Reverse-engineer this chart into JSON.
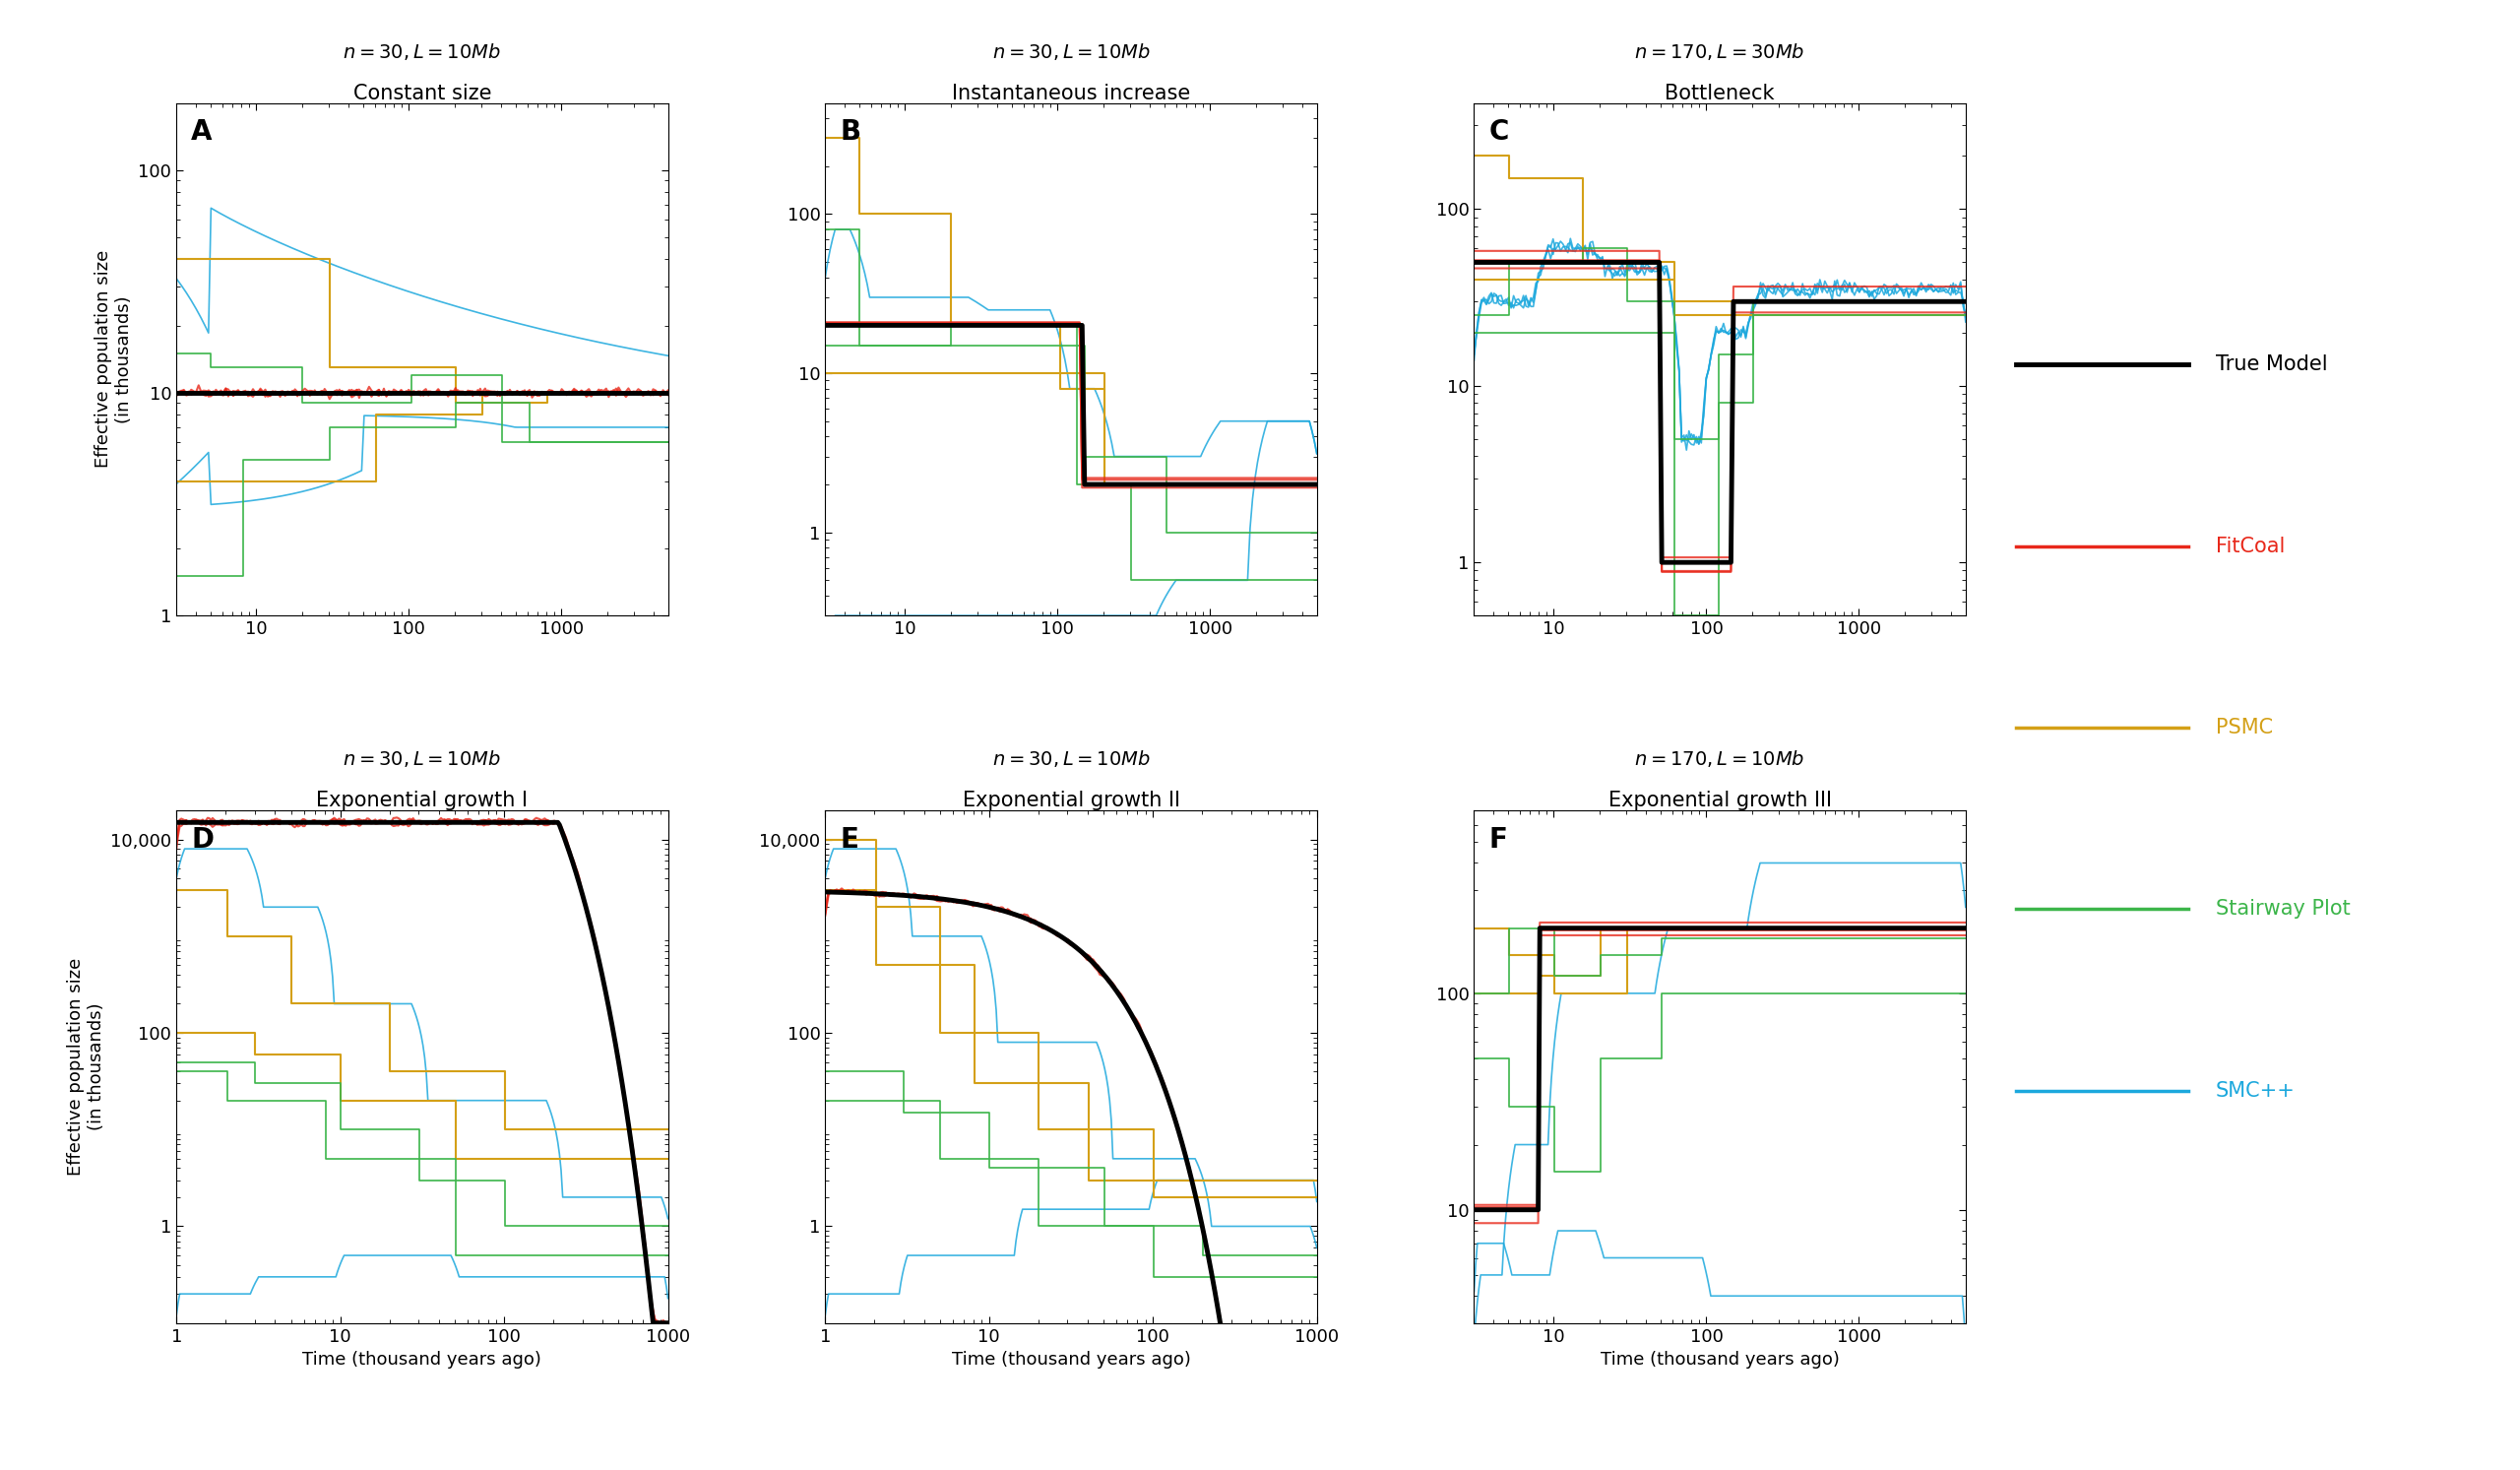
{
  "panels": [
    {
      "label": "A",
      "title": "Constant size",
      "subtitle": "n = 30, L = 10 Mb",
      "row": 0,
      "col": 0,
      "xlim": [
        3,
        5000
      ],
      "ylim": [
        1,
        200
      ],
      "yticks": [
        1,
        10,
        100
      ],
      "yticklabels": [
        "1",
        "10",
        "100"
      ],
      "xticks": [
        10,
        100,
        1000
      ],
      "xticklabels": [
        "10",
        "100",
        "1000"
      ]
    },
    {
      "label": "B",
      "title": "Instantaneous increase",
      "subtitle": "n = 30, L = 10 Mb",
      "row": 0,
      "col": 1,
      "xlim": [
        3,
        5000
      ],
      "ylim": [
        0.3,
        500
      ],
      "yticks": [
        1,
        10,
        100
      ],
      "yticklabels": [
        "1",
        "10",
        "100"
      ],
      "xticks": [
        10,
        100,
        1000
      ],
      "xticklabels": [
        "10",
        "100",
        "1000"
      ]
    },
    {
      "label": "C",
      "title": "Bottleneck",
      "subtitle": "n = 170, L = 30 Mb",
      "row": 0,
      "col": 2,
      "xlim": [
        3,
        5000
      ],
      "ylim": [
        0.5,
        400
      ],
      "yticks": [
        1,
        10,
        100
      ],
      "yticklabels": [
        "1",
        "10",
        "100"
      ],
      "xticks": [
        10,
        100,
        1000
      ],
      "xticklabels": [
        "10",
        "100",
        "1000"
      ]
    },
    {
      "label": "D",
      "title": "Exponential growth I",
      "subtitle": "n = 30, L = 10 Mb",
      "row": 1,
      "col": 0,
      "xlim": [
        1,
        1000
      ],
      "ylim": [
        0.1,
        20000
      ],
      "yticks": [
        1,
        100,
        10000
      ],
      "yticklabels": [
        "1",
        "100",
        "10,000"
      ],
      "xticks": [
        1,
        10,
        100,
        1000
      ],
      "xticklabels": [
        "1",
        "10",
        "100",
        "1000"
      ]
    },
    {
      "label": "E",
      "title": "Exponential growth II",
      "subtitle": "n = 30, L = 10 Mb",
      "row": 1,
      "col": 1,
      "xlim": [
        1,
        1000
      ],
      "ylim": [
        0.1,
        20000
      ],
      "yticks": [
        1,
        100,
        10000
      ],
      "yticklabels": [
        "1",
        "100",
        "10,000"
      ],
      "xticks": [
        1,
        10,
        100,
        1000
      ],
      "xticklabels": [
        "1",
        "10",
        "100",
        "1000"
      ]
    },
    {
      "label": "F",
      "title": "Exponential growth III",
      "subtitle": "n = 170, L = 10 Mb",
      "row": 1,
      "col": 2,
      "xlim": [
        3,
        5000
      ],
      "ylim": [
        3,
        700
      ],
      "yticks": [
        10,
        100
      ],
      "yticklabels": [
        "10",
        "100"
      ],
      "xticks": [
        10,
        100,
        1000
      ],
      "xticklabels": [
        "10",
        "100",
        "1000"
      ]
    }
  ],
  "colors": {
    "true_model": "#000000",
    "fitcoal": "#e8281a",
    "psmc": "#d4a017",
    "stairway": "#3cb54a",
    "smcpp": "#1ca8dd"
  },
  "legend_labels": [
    "True Model",
    "FitCoal",
    "PSMC",
    "Stairway Plot",
    "SMC++"
  ]
}
